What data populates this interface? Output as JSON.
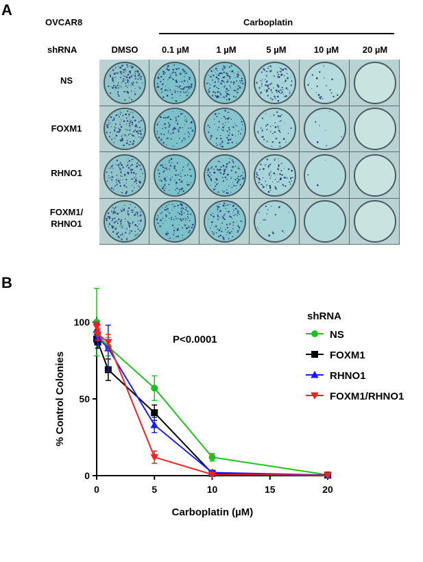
{
  "panel_a": {
    "label": "A",
    "cell_line": "OVCAR8",
    "drug_header": "Carboplatin",
    "shrna_label": "shRNA",
    "columns": [
      "DMSO",
      "0.1 µM",
      "1 µM",
      "5 µM",
      "10 µM",
      "20 µM"
    ],
    "rows": [
      "NS",
      "FOXM1",
      "RHNO1",
      "FOXM1/\nRHNO1"
    ],
    "colony_density": [
      [
        0.9,
        0.75,
        0.95,
        0.7,
        0.15,
        0.0
      ],
      [
        0.85,
        0.55,
        0.5,
        0.35,
        0.05,
        0.0
      ],
      [
        0.75,
        0.55,
        0.7,
        0.55,
        0.02,
        0.0
      ],
      [
        0.85,
        0.7,
        0.7,
        0.15,
        0.0,
        0.0
      ]
    ],
    "well_colors": [
      "#8fc4c9",
      "#7ec2c9",
      "#86c6cc",
      "#a8d6d8",
      "#b5dbdc",
      "#c9e3e1"
    ]
  },
  "panel_b": {
    "label": "B"
  },
  "chart_data": {
    "type": "line",
    "title": "",
    "xlabel": "Carboplatin (µM)",
    "ylabel": "% Control Colonies",
    "xlim": [
      0,
      20
    ],
    "ylim": [
      0,
      100
    ],
    "xticks": [
      0,
      5,
      10,
      15,
      20
    ],
    "yticks": [
      0,
      50,
      100
    ],
    "annotation": "P<0.0001",
    "legend_title": "shRNA",
    "legend_position": "right",
    "series": [
      {
        "name": "NS",
        "color": "#1fbf1f",
        "marker": "circle",
        "x": [
          0,
          0.1,
          1,
          5,
          10,
          20
        ],
        "y": [
          100,
          92,
          84,
          57,
          12,
          0.5
        ],
        "err": [
          22,
          6,
          6,
          8,
          2.5,
          1
        ]
      },
      {
        "name": "FOXM1",
        "color": "#000000",
        "marker": "square",
        "x": [
          0,
          0.1,
          1,
          5,
          10,
          20
        ],
        "y": [
          89,
          87,
          69,
          41,
          1.5,
          0.3
        ],
        "err": [
          3,
          4,
          7,
          5,
          1,
          0.5
        ]
      },
      {
        "name": "RHNO1",
        "color": "#1a1aff",
        "marker": "triangle-up",
        "x": [
          0,
          0.1,
          1,
          5,
          10,
          20
        ],
        "y": [
          95,
          90,
          83,
          33,
          2,
          0.3
        ],
        "err": [
          4,
          5,
          15,
          5,
          1.5,
          0.5
        ]
      },
      {
        "name": "FOXM1/RHNO1",
        "color": "#ee2222",
        "marker": "triangle-down",
        "x": [
          0,
          0.1,
          1,
          5,
          10,
          20
        ],
        "y": [
          97,
          92,
          87,
          12,
          0.8,
          0.2
        ],
        "err": [
          3,
          4,
          5,
          4,
          0.8,
          0.5
        ]
      }
    ]
  }
}
